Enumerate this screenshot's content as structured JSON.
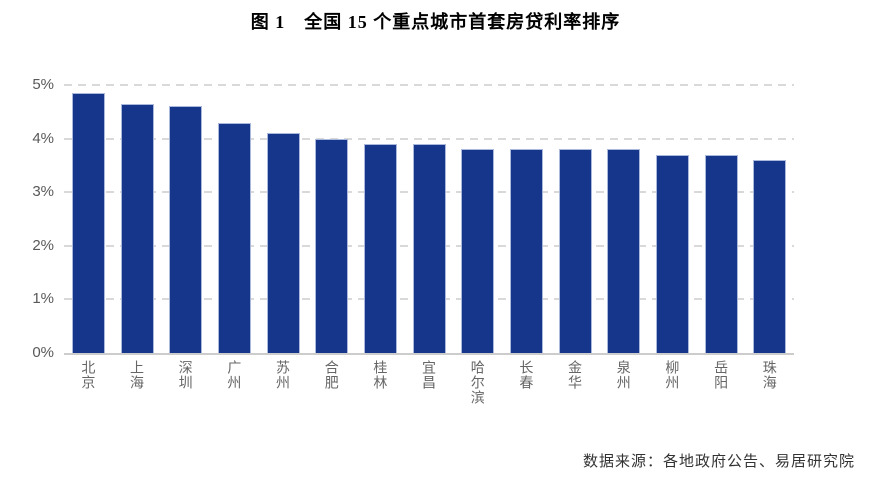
{
  "header": {
    "title": "图 1　全国 15 个重点城市首套房贷利率排序"
  },
  "source": "数据来源：各地政府公告、易居研究院",
  "theme": {
    "bar_fill": "#16368C",
    "bar_border": "#aab8dc",
    "grid_color": "#d9d9d9",
    "axis_color": "#cccccc",
    "ylabel_color": "#595959",
    "xlabel_color": "#666666"
  },
  "chart_data": {
    "type": "bar",
    "title": "图 1　全国 15 个重点城市首套房贷利率排序",
    "categories": [
      "北京",
      "上海",
      "深圳",
      "广州",
      "苏州",
      "合肥",
      "桂林",
      "宜昌",
      "哈尔滨",
      "长春",
      "金华",
      "泉州",
      "柳州",
      "岳阳",
      "珠海"
    ],
    "values": [
      4.85,
      4.65,
      4.6,
      4.3,
      4.1,
      4.0,
      3.9,
      3.9,
      3.8,
      3.8,
      3.8,
      3.8,
      3.7,
      3.7,
      3.6
    ],
    "unit": "%",
    "xlabel": "",
    "ylabel": "",
    "ylim": [
      0,
      5
    ],
    "yticks": [
      "0%",
      "1%",
      "2%",
      "3%",
      "4%",
      "5%"
    ],
    "grid": "horizontal-dashed",
    "legend_position": "none",
    "annotation": "数据来源：各地政府公告、易居研究院"
  }
}
